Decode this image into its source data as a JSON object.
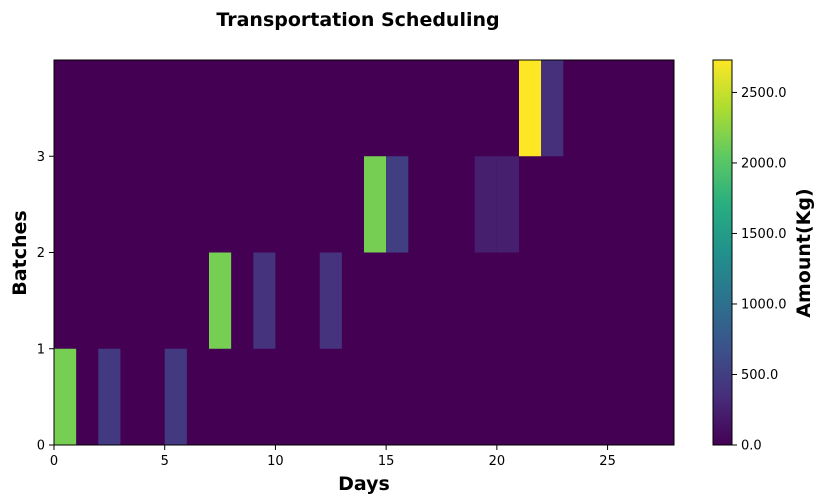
{
  "chart_data": {
    "type": "heatmap",
    "title": "Transportation Scheduling",
    "xlabel": "Days",
    "ylabel": "Batches",
    "colorbar_label": "Amount(Kg)",
    "colormap": "viridis",
    "xlim": [
      0,
      28
    ],
    "ylim": [
      0,
      4
    ],
    "xticks": [
      0,
      5,
      10,
      15,
      20,
      25
    ],
    "yticks": [
      0,
      1,
      2,
      3
    ],
    "colorbar_range": [
      0,
      2730
    ],
    "colorbar_ticks": [
      0,
      500,
      1000,
      1500,
      2000,
      2500
    ],
    "colorbar_tick_labels": [
      "0.0",
      "500.0",
      "1000.0",
      "1500.0",
      "2000.0",
      "2500.0"
    ],
    "background_value": 0,
    "cells": [
      {
        "day": 0,
        "batch": 0,
        "value": 2150
      },
      {
        "day": 2,
        "batch": 0,
        "value": 450
      },
      {
        "day": 5,
        "batch": 0,
        "value": 450
      },
      {
        "day": 7,
        "batch": 1,
        "value": 2150
      },
      {
        "day": 9,
        "batch": 1,
        "value": 400
      },
      {
        "day": 12,
        "batch": 1,
        "value": 400
      },
      {
        "day": 14,
        "batch": 2,
        "value": 2150
      },
      {
        "day": 15,
        "batch": 2,
        "value": 500
      },
      {
        "day": 19,
        "batch": 2,
        "value": 230
      },
      {
        "day": 20,
        "batch": 2,
        "value": 230
      },
      {
        "day": 21,
        "batch": 3,
        "value": 2730
      },
      {
        "day": 22,
        "batch": 3,
        "value": 370
      }
    ]
  }
}
